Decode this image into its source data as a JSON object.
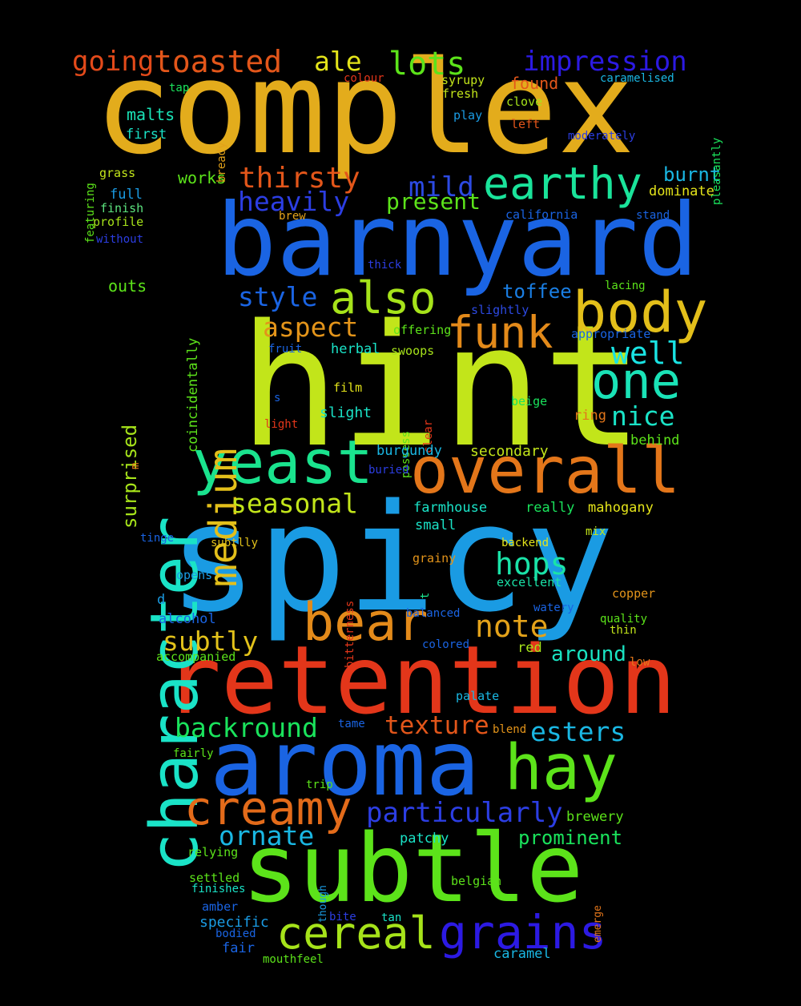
{
  "words": [
    {
      "text": "complex",
      "color": "#e3ac1c"
    },
    {
      "text": "hint",
      "color": "#c2e51a"
    },
    {
      "text": "spicy",
      "color": "#1a9be3"
    },
    {
      "text": "barnyard",
      "color": "#1a64e3"
    },
    {
      "text": "retention",
      "color": "#e3361a"
    },
    {
      "text": "aroma",
      "color": "#1a64e3"
    },
    {
      "text": "subtle",
      "color": "#5ce31a"
    },
    {
      "text": "overall",
      "color": "#e3761a"
    },
    {
      "text": "character",
      "color": "#1ae3c7"
    },
    {
      "text": "yeast",
      "color": "#1ae38e"
    },
    {
      "text": "bear",
      "color": "#e38a1a"
    },
    {
      "text": "body",
      "color": "#e3bf1a"
    },
    {
      "text": "creamy",
      "color": "#e36b1a"
    },
    {
      "text": "hay",
      "color": "#5ce31a"
    },
    {
      "text": "earthy",
      "color": "#1ae39a"
    },
    {
      "text": "also",
      "color": "#a6e31a"
    },
    {
      "text": "funk",
      "color": "#e38a1a"
    },
    {
      "text": "one",
      "color": "#1ae3b7"
    },
    {
      "text": "cereal",
      "color": "#a6e31a"
    },
    {
      "text": "grains",
      "color": "#2c1ae3"
    },
    {
      "text": "medium",
      "color": "#e3bf1a"
    },
    {
      "text": "toasted",
      "color": "#e3561a"
    },
    {
      "text": "going",
      "color": "#e34a1a"
    },
    {
      "text": "lots",
      "color": "#5ce31a"
    },
    {
      "text": "ale",
      "color": "#e3e31a"
    },
    {
      "text": "impression",
      "color": "#2c1ae3"
    },
    {
      "text": "thirsty",
      "color": "#e3561a"
    },
    {
      "text": "heavily",
      "color": "#2c3ee3"
    },
    {
      "text": "mild",
      "color": "#2c4ae3"
    },
    {
      "text": "present",
      "color": "#5ce31a"
    },
    {
      "text": "style",
      "color": "#1a64e3"
    },
    {
      "text": "aspect",
      "color": "#e3941a"
    },
    {
      "text": "seasonal",
      "color": "#c2e51a"
    },
    {
      "text": "note",
      "color": "#e3a21a"
    },
    {
      "text": "subtly",
      "color": "#e3c21a"
    },
    {
      "text": "backround",
      "color": "#1ae35c"
    },
    {
      "text": "texture",
      "color": "#e3561a"
    },
    {
      "text": "esters",
      "color": "#1ab7e3"
    },
    {
      "text": "particularly",
      "color": "#2c3ee3"
    },
    {
      "text": "ornate",
      "color": "#1ab7e3"
    },
    {
      "text": "prominent",
      "color": "#1ae35c"
    },
    {
      "text": "well",
      "color": "#1ae3e3"
    },
    {
      "text": "nice",
      "color": "#1ae3c7"
    },
    {
      "text": "hops",
      "color": "#1ae3a8"
    },
    {
      "text": "around",
      "color": "#1ae3c2"
    },
    {
      "text": "burnt",
      "color": "#1ab7e3"
    },
    {
      "text": "toffee",
      "color": "#1a7ee3"
    },
    {
      "text": "surprised",
      "color": "#a6e31a"
    },
    {
      "text": "coincidentally",
      "color": "#5ce31a"
    },
    {
      "text": "malts",
      "color": "#1ae3b7"
    },
    {
      "text": "first",
      "color": "#1ae3c7"
    },
    {
      "text": "works",
      "color": "#5ce31a"
    },
    {
      "text": "full",
      "color": "#1a9be3"
    },
    {
      "text": "finish",
      "color": "#5ce37e"
    },
    {
      "text": "profile",
      "color": "#a6e31a"
    },
    {
      "text": "without",
      "color": "#2c3ee3"
    },
    {
      "text": "grass",
      "color": "#c2e51a"
    },
    {
      "text": "featuring",
      "color": "#5ce31a"
    },
    {
      "text": "tap",
      "color": "#1ae35c"
    },
    {
      "text": "bready",
      "color": "#e3a21a"
    },
    {
      "text": "colour",
      "color": "#e3361a"
    },
    {
      "text": "syrupy",
      "color": "#c2e51a"
    },
    {
      "text": "fresh",
      "color": "#c2e51a"
    },
    {
      "text": "play",
      "color": "#1a9be3"
    },
    {
      "text": "found",
      "color": "#e3561a"
    },
    {
      "text": "clove",
      "color": "#a6e31a"
    },
    {
      "text": "left",
      "color": "#e3561a"
    },
    {
      "text": "caramelised",
      "color": "#1ab7e3"
    },
    {
      "text": "moderately",
      "color": "#2c3ee3"
    },
    {
      "text": "pleasantly",
      "color": "#1ae35c"
    },
    {
      "text": "dominate",
      "color": "#e3e31a"
    },
    {
      "text": "brew",
      "color": "#e3a21a"
    },
    {
      "text": "california",
      "color": "#1a64e3"
    },
    {
      "text": "stand",
      "color": "#1a64e3"
    },
    {
      "text": "outs",
      "color": "#5ce31a"
    },
    {
      "text": "thick",
      "color": "#2c3ee3"
    },
    {
      "text": "lacing",
      "color": "#5ce31a"
    },
    {
      "text": "slightly",
      "color": "#2c4ae3"
    },
    {
      "text": "appropriate",
      "color": "#1a64e3"
    },
    {
      "text": "offering",
      "color": "#5ce31a"
    },
    {
      "text": "fruit",
      "color": "#1a64e3"
    },
    {
      "text": "herbal",
      "color": "#1ae3c7"
    },
    {
      "text": "swoops",
      "color": "#a6e31a"
    },
    {
      "text": "s",
      "color": "#1a64e3"
    },
    {
      "text": "film",
      "color": "#e3e31a"
    },
    {
      "text": "possess",
      "color": "#5ce31a"
    },
    {
      "text": "clear",
      "color": "#e3361a"
    },
    {
      "text": "beige",
      "color": "#1ae35c"
    },
    {
      "text": "light",
      "color": "#e3361a"
    },
    {
      "text": "slight",
      "color": "#1ae3c7"
    },
    {
      "text": "ring",
      "color": "#e3761a"
    },
    {
      "text": "behind",
      "color": "#5ce31a"
    },
    {
      "text": "m",
      "color": "#e3761a"
    },
    {
      "text": "burgundy",
      "color": "#1ab7e3"
    },
    {
      "text": "secondary",
      "color": "#c2e51a"
    },
    {
      "text": "buried",
      "color": "#2c3ee3"
    },
    {
      "text": "farmhouse",
      "color": "#1ae3c7"
    },
    {
      "text": "really",
      "color": "#1ae35c"
    },
    {
      "text": "mahogany",
      "color": "#e3e31a"
    },
    {
      "text": "small",
      "color": "#1ae3c7"
    },
    {
      "text": "tinge",
      "color": "#1a64e3"
    },
    {
      "text": "subtlly",
      "color": "#e3c21a"
    },
    {
      "text": "bitterness",
      "color": "#e3361a"
    },
    {
      "text": "mix",
      "color": "#c2e51a"
    },
    {
      "text": "backend",
      "color": "#e3e31a"
    },
    {
      "text": "grainy",
      "color": "#e3941a"
    },
    {
      "text": "opens",
      "color": "#1a9be3"
    },
    {
      "text": "t",
      "color": "#1ae38e"
    },
    {
      "text": "excellent",
      "color": "#1ae3a8"
    },
    {
      "text": "d",
      "color": "#1a9be3"
    },
    {
      "text": "copper",
      "color": "#e3941a"
    },
    {
      "text": "alcohol",
      "color": "#1a64e3"
    },
    {
      "text": "balanced",
      "color": "#1a64e3"
    },
    {
      "text": "watery",
      "color": "#1a64e3"
    },
    {
      "text": "quality",
      "color": "#5ce31a"
    },
    {
      "text": "thin",
      "color": "#c2e51a"
    },
    {
      "text": "colored",
      "color": "#1a64e3"
    },
    {
      "text": "red",
      "color": "#a6e31a"
    },
    {
      "text": "accompanied",
      "color": "#5ce31a"
    },
    {
      "text": "low",
      "color": "#e3761a"
    },
    {
      "text": "palate",
      "color": "#1ab7e3"
    },
    {
      "text": "tame",
      "color": "#1a64e3"
    },
    {
      "text": "blend",
      "color": "#e3941a"
    },
    {
      "text": "fairly",
      "color": "#5ce31a"
    },
    {
      "text": "trip",
      "color": "#5ce31a"
    },
    {
      "text": "brewery",
      "color": "#5ce31a"
    },
    {
      "text": "patchy",
      "color": "#1ae3c7"
    },
    {
      "text": "relying",
      "color": "#5ce31a"
    },
    {
      "text": "though",
      "color": "#1a9be3"
    },
    {
      "text": "settled",
      "color": "#5ce31a"
    },
    {
      "text": "finishes",
      "color": "#1ae3c7"
    },
    {
      "text": "emerge",
      "color": "#e3761a"
    },
    {
      "text": "belgian",
      "color": "#5ce31a"
    },
    {
      "text": "amber",
      "color": "#1a64e3"
    },
    {
      "text": "specific",
      "color": "#1a9be3"
    },
    {
      "text": "bodied",
      "color": "#1a64e3"
    },
    {
      "text": "bite",
      "color": "#2c3ee3"
    },
    {
      "text": "tan",
      "color": "#1ae3c7"
    },
    {
      "text": "fair",
      "color": "#1a64e3"
    },
    {
      "text": "mouthfeel",
      "color": "#5ce31a"
    },
    {
      "text": "caramel",
      "color": "#1ab7e3"
    }
  ]
}
